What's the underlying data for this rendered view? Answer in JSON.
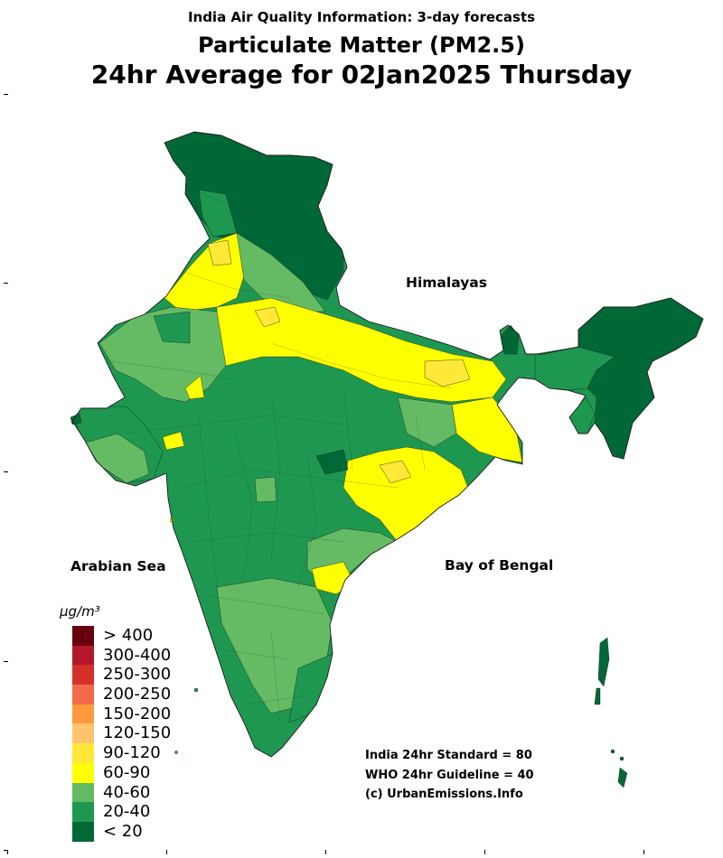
{
  "header": {
    "supertitle": "India Air Quality Information: 3-day forecasts",
    "title_line1": "Particulate Matter (PM2.5)",
    "title_line2": "24hr Average for 02Jan2025 Thursday"
  },
  "labels": {
    "himalayas": "Himalayas",
    "arabian_sea": "Arabian Sea",
    "bay_of_bengal": "Bay of Bengal"
  },
  "legend": {
    "unit": "µg/m³",
    "items": [
      {
        "label": "> 400",
        "color": "#67000d"
      },
      {
        "label": "300-400",
        "color": "#b2182b"
      },
      {
        "label": "250-300",
        "color": "#d6302a"
      },
      {
        "label": "200-250",
        "color": "#f26a4a"
      },
      {
        "label": "150-200",
        "color": "#fd9a3c"
      },
      {
        "label": "120-150",
        "color": "#fec46c"
      },
      {
        "label": "90-120",
        "color": "#ffe838"
      },
      {
        "label": "60-90",
        "color": "#ffff00"
      },
      {
        "label": "40-60",
        "color": "#64bb64"
      },
      {
        "label": "20-40",
        "color": "#1e9850"
      },
      {
        "label": "< 20",
        "color": "#006837"
      }
    ]
  },
  "notes": {
    "standard": "India 24hr Standard = 80",
    "guideline": "WHO 24hr Guideline = 40",
    "copyright": "(c) UrbanEmissions.Info"
  },
  "palette": {
    "border": "#1a1a1a"
  }
}
